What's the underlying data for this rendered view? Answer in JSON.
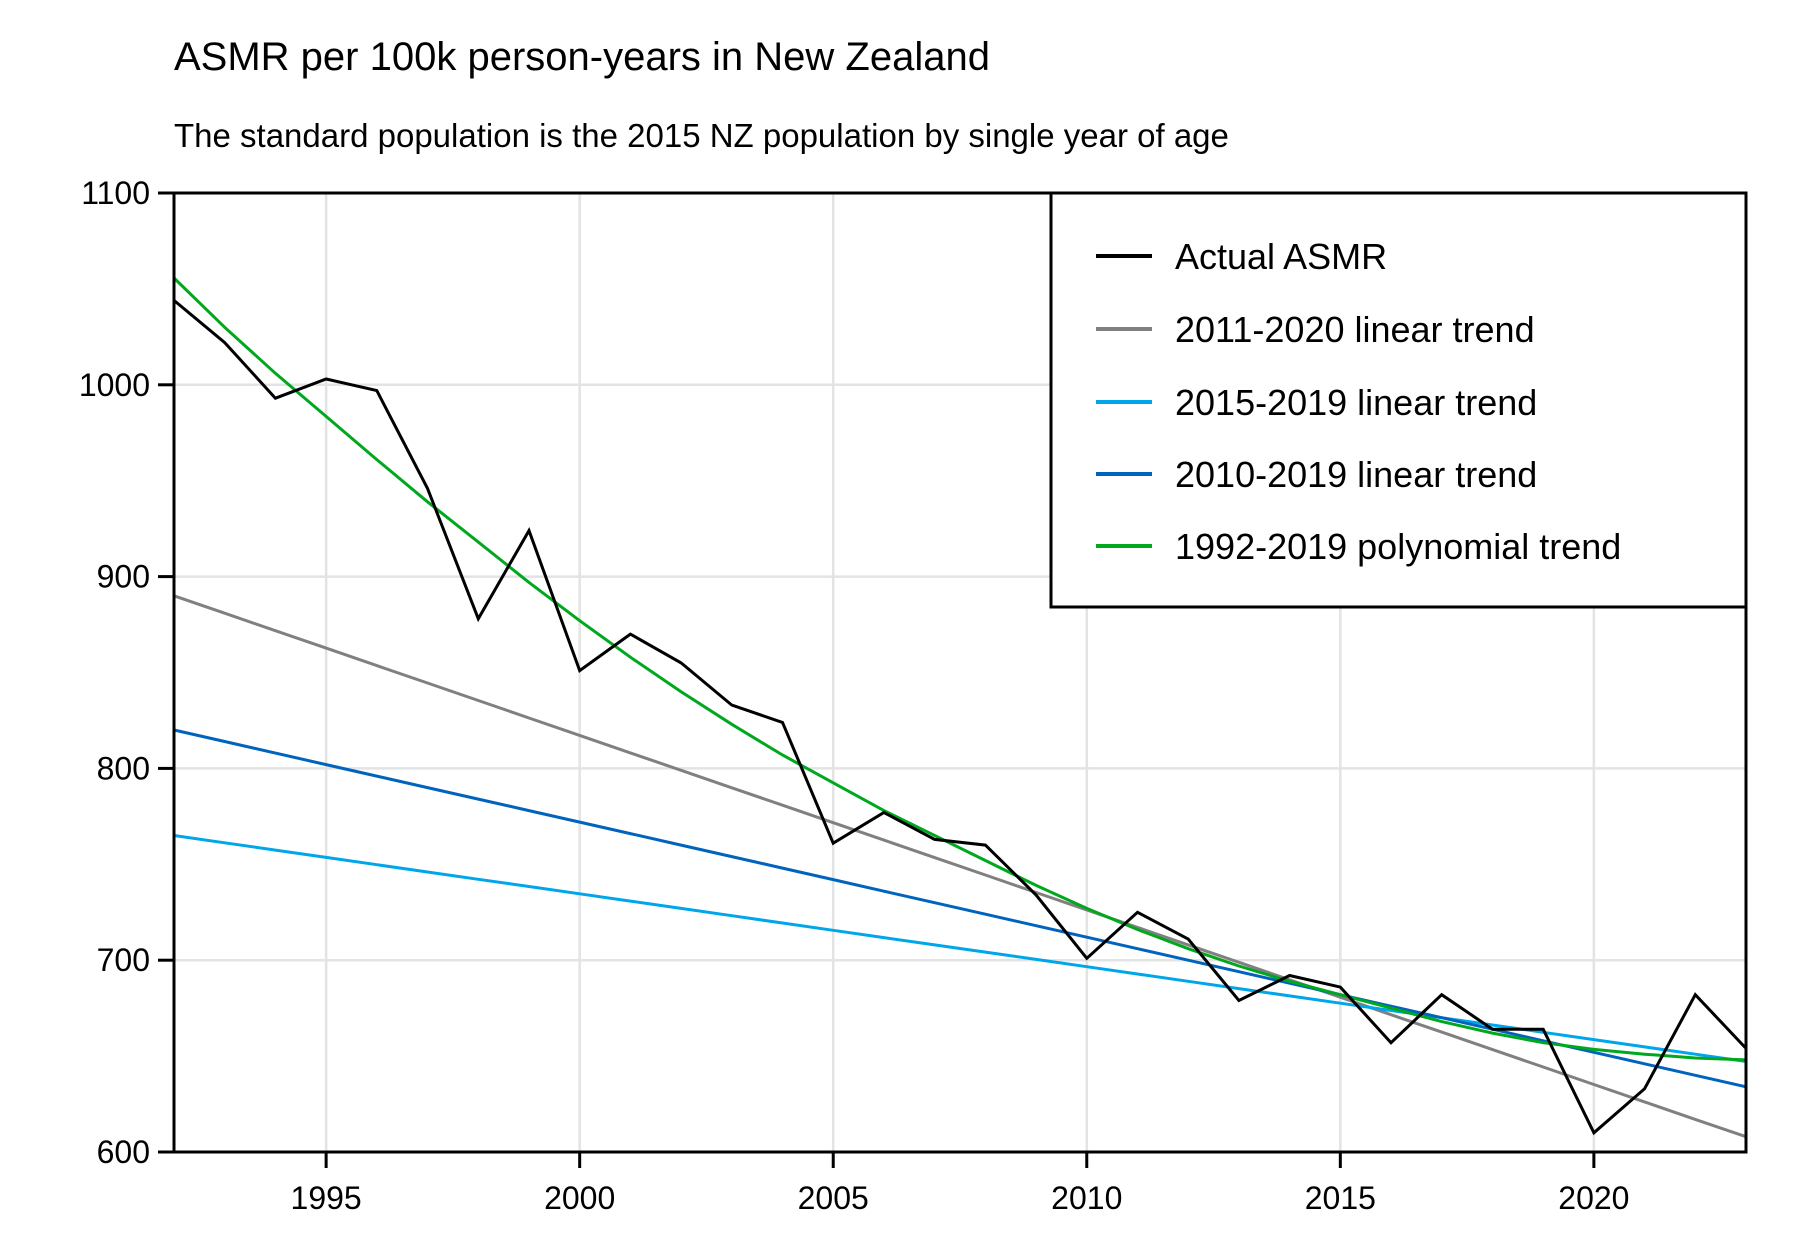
{
  "chart_data": {
    "type": "line",
    "title": "ASMR per 100k person-years in New Zealand",
    "subtitle": "The standard population is the 2015 NZ population by single year of age",
    "xlabel": "",
    "ylabel": "",
    "xlim": [
      1992,
      2023
    ],
    "ylim": [
      600,
      1100
    ],
    "x_ticks": [
      1995,
      2000,
      2005,
      2010,
      2015,
      2020
    ],
    "x_tick_labels": [
      "1995",
      "2000",
      "2005",
      "2010",
      "2015",
      "2020"
    ],
    "y_ticks": [
      600,
      700,
      800,
      900,
      1000,
      1100
    ],
    "y_tick_labels": [
      "600",
      "700",
      "800",
      "900",
      "1000",
      "1100"
    ],
    "grid": true,
    "legend_position": "top-right",
    "x": [
      1992,
      1993,
      1994,
      1995,
      1996,
      1997,
      1998,
      1999,
      2000,
      2001,
      2002,
      2003,
      2004,
      2005,
      2006,
      2007,
      2008,
      2009,
      2010,
      2011,
      2012,
      2013,
      2014,
      2015,
      2016,
      2017,
      2018,
      2019,
      2020,
      2021,
      2022,
      2023
    ],
    "series": [
      {
        "name": "Actual ASMR",
        "color": "#000000",
        "values": [
          1044,
          1022,
          993,
          1003,
          997,
          946,
          878,
          924,
          851,
          870,
          855,
          833,
          824,
          761,
          777,
          763,
          760,
          734,
          701,
          725,
          711,
          679,
          692,
          686,
          657,
          682,
          664,
          664,
          610,
          633,
          682,
          654
        ]
      },
      {
        "name": "2011-2020 linear trend",
        "color": "#808080",
        "values": [
          890,
          880.9,
          871.8,
          862.7,
          853.6,
          844.5,
          835.4,
          826.3,
          817.2,
          808.1,
          799,
          789.9,
          780.8,
          771.7,
          762.6,
          753.5,
          744.4,
          735.3,
          726.2,
          717.1,
          708,
          698.9,
          689.8,
          680.7,
          671.6,
          662.5,
          653.4,
          644.3,
          635.2,
          626.1,
          617,
          608
        ]
      },
      {
        "name": "2015-2019 linear trend",
        "color": "#00a6ea",
        "values": [
          765,
          761.2,
          757.4,
          753.6,
          749.8,
          746,
          742.2,
          738.4,
          734.6,
          730.8,
          727,
          723.2,
          719.4,
          715.6,
          711.8,
          708,
          704.2,
          700.4,
          696.6,
          692.8,
          689,
          685.2,
          681.4,
          677.6,
          673.8,
          670,
          666.2,
          662.4,
          658.6,
          654.8,
          651,
          647.2
        ]
      },
      {
        "name": "2010-2019 linear trend",
        "color": "#0063be",
        "values": [
          820,
          814,
          808,
          802,
          796,
          790,
          784,
          778,
          772,
          766,
          760,
          754,
          748,
          742,
          736,
          730,
          724,
          718,
          712,
          706,
          700,
          694,
          688,
          682,
          676,
          670,
          664,
          658,
          652,
          646,
          640,
          634
        ]
      },
      {
        "name": "1992-2019 polynomial trend",
        "color": "#00a81e",
        "values": [
          1055.7,
          1030,
          1006,
          983.5,
          961,
          939,
          918,
          897,
          877,
          858,
          840,
          823,
          807,
          792.5,
          778,
          765,
          752,
          739,
          727,
          716,
          706,
          697,
          689,
          682,
          675,
          668,
          662,
          657,
          653.5,
          651,
          649,
          648
        ]
      }
    ]
  }
}
